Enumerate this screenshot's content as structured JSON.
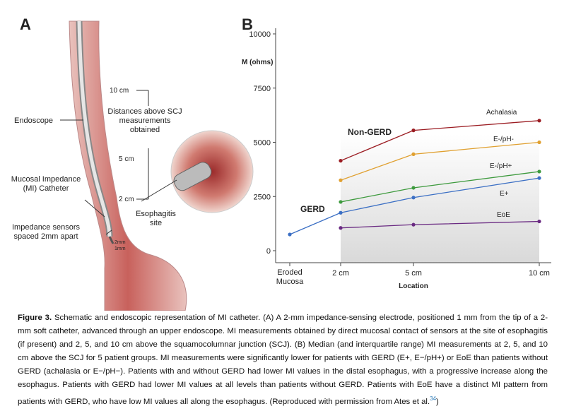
{
  "panel_a": {
    "label": "A",
    "marks": [
      "10 cm",
      "5 cm",
      "2 cm"
    ],
    "endoscope": "Endoscope",
    "distances": "Distances above SCJ measurements obtained",
    "catheter": "Mucosal Impedance (MI) Catheter",
    "sensors": "Impedance sensors spaced 2mm apart",
    "esophagitis": "Esophagitis site",
    "spacing": [
      "2mm",
      "1mm"
    ]
  },
  "chart_data": {
    "type": "line",
    "panel_label": "B",
    "y_label": "M (ohms)",
    "x_label": "Location",
    "categories": [
      "Eroded Mucosa",
      "2 cm",
      "5 cm",
      "10 cm"
    ],
    "ylim": [
      0,
      10000
    ],
    "yticks": [
      0,
      2500,
      5000,
      7500,
      10000
    ],
    "annotations": [
      "Non-GERD",
      "GERD"
    ],
    "series": [
      {
        "name": "Achalasia",
        "color": "#9b1c22",
        "values": [
          null,
          4150,
          5550,
          6000
        ]
      },
      {
        "name": "E-/pH-",
        "color": "#e0a030",
        "values": [
          null,
          3250,
          4450,
          5000
        ]
      },
      {
        "name": "E-/pH+",
        "color": "#3d9a3d",
        "values": [
          null,
          2250,
          2900,
          3650
        ]
      },
      {
        "name": "E+",
        "color": "#3b6fc4",
        "values": [
          750,
          1750,
          2450,
          3350
        ]
      },
      {
        "name": "EoE",
        "color": "#6a2a82",
        "values": [
          null,
          1050,
          1200,
          1350
        ]
      }
    ]
  },
  "caption": {
    "label": "Figure 3.",
    "text": "Schematic and endoscopic representation of MI catheter. (A) A 2-mm impedance-sensing electrode, positioned 1 mm from the tip of a 2-mm soft catheter, advanced through an upper endoscope. MI measurements obtained by direct mucosal contact of sensors at the site of esophagitis (if present) and 2, 5, and 10 cm above the squamocolumnar junction (SCJ). (B) Median (and interquartile range) MI measurements at 2, 5, and 10 cm above the SCJ for 5 patient groups. MI measurements were significantly lower for patients with GERD (E+, E−/pH+) or EoE than patients without GERD (achalasia or E−/pH−). Patients with and without GERD had lower MI values in the distal esophagus, with a progressive increase along the esophagus. Patients with GERD had lower MI values at all levels than patients without GERD. Patients with EoE have a distinct MI pattern from patients with GERD, who have low MI values all along the esophagus. (Reproduced with permission from Ates et al.",
    "ref": "34",
    "tail": ")"
  }
}
